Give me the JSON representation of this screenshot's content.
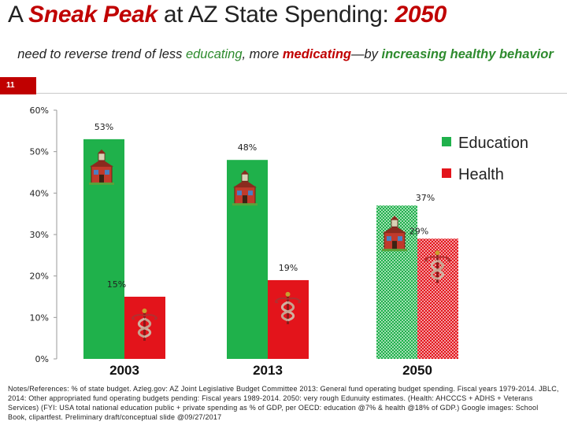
{
  "title": {
    "prefix": "A ",
    "emphasis": "Sneak Peak",
    "middle": " at AZ State Spending:  ",
    "year": "2050"
  },
  "subtitle": {
    "part1": "need to reverse trend of less ",
    "educating": "educating",
    "part2": ", more ",
    "medicating": "medicating",
    "part3": "—by ",
    "increasing": "increasing healthy behavior"
  },
  "slide_number": "11",
  "colors": {
    "education": "#1fb14b",
    "health": "#e3141b",
    "axis": "#999999"
  },
  "chart_data": {
    "type": "bar",
    "categories": [
      "2003",
      "2013",
      "2050"
    ],
    "series": [
      {
        "name": "Education",
        "values": [
          53,
          48,
          37
        ],
        "labels": [
          "53%",
          "48%",
          "37%"
        ],
        "icon": "schoolhouse-icon"
      },
      {
        "name": "Health",
        "values": [
          15,
          19,
          29
        ],
        "labels": [
          "15%",
          "19%",
          "29%"
        ],
        "icon": "caduceus-icon"
      }
    ],
    "projected_category": "2050",
    "ylim": [
      0,
      60
    ],
    "yticks": [
      0,
      10,
      20,
      30,
      40,
      50,
      60
    ],
    "ytick_labels": [
      "0%",
      "10%",
      "20%",
      "30%",
      "40%",
      "50%",
      "60%"
    ],
    "legend": "right",
    "xlabel": "",
    "ylabel": ""
  },
  "notes": "Notes/References: % of state budget. Azleg.gov: AZ Joint Legislative Budget Committee 2013: General fund operating budget spending. Fiscal years 1979-2014. JBLC, 2014: Other appropriated fund operating budgets pending: Fiscal years 1989-2014. 2050: very rough Edunuity estimates. (Health: AHCCCS + ADHS + Veterans Services) (FYI: USA total national education public + private spending as % of GDP, per OECD: education @7% & health @18% of GDP.) Google images: School Book, clipartfest. Preliminary draft/conceptual slide @09/27/2017"
}
